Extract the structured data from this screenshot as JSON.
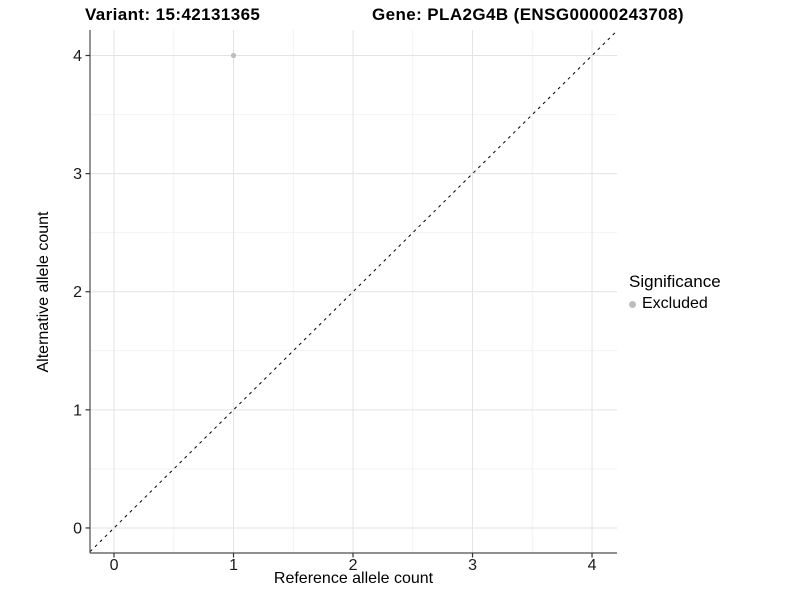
{
  "chart_data": {
    "type": "scatter",
    "titles": {
      "variant": "Variant: 15:42131365",
      "gene": "Gene: PLA2G4B (ENSG00000243708)"
    },
    "xlabel": "Reference allele count",
    "ylabel": "Alternative allele count",
    "xlim": [
      -0.201,
      4.209
    ],
    "ylim": [
      -0.212,
      4.216
    ],
    "x_ticks": [
      0,
      1,
      2,
      3,
      4
    ],
    "y_ticks": [
      0,
      1,
      2,
      3,
      4
    ],
    "x_minor": [
      0.5,
      1.5,
      2.5,
      3.5
    ],
    "y_minor": [
      0.5,
      1.5,
      2.5,
      3.5
    ],
    "grid": "major+minor",
    "series": [
      {
        "name": "Excluded",
        "marker": "circle",
        "color": "#bdbdbd",
        "points": [
          {
            "x": 1,
            "y": 4
          }
        ]
      }
    ],
    "identity_line": {
      "style": "dashed",
      "color": "#000000",
      "from": -0.201,
      "to": 4.209
    },
    "legend": {
      "title": "Significance",
      "position": "right",
      "entries": [
        {
          "label": "Excluded",
          "color": "#bdbdbd",
          "marker": "circle"
        }
      ]
    },
    "style_colors": {
      "grid_major": "#e3e3e3",
      "grid_minor": "#f2f2f2",
      "axis_line": "#4d4d4d",
      "tick_mark": "#333333",
      "tick_label": "#1a1a1a",
      "text": "#000000"
    }
  }
}
